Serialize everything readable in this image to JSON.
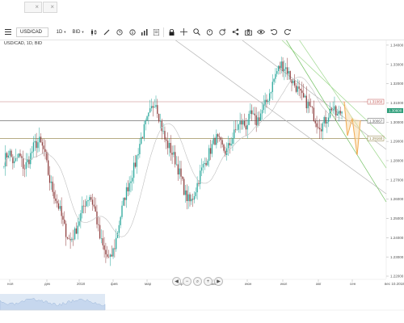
{
  "toolbar": {
    "symbol": "USD/CAD",
    "timeframe": "1D",
    "price_type": "BID",
    "icons": [
      "menu-icon",
      "candles-icon",
      "line-draw-icon",
      "pencil-icon",
      "clock-icon",
      "info-icon",
      "bar-chart-icon",
      "list-icon",
      "lock-icon",
      "crosshair-icon",
      "zoom-icon",
      "alarm-icon",
      "alarm-add-icon",
      "share-icon",
      "camera-icon",
      "eye-icon",
      "undo-icon",
      "redo-icon"
    ]
  },
  "chart": {
    "title": "USD/CAD, 1D, BID",
    "y_ticks": [
      "1.34000",
      "1.33000",
      "1.32000",
      "1.31000",
      "1.30000",
      "1.29000",
      "1.28000",
      "1.27000",
      "1.26000",
      "1.25000",
      "1.24000",
      "1.23000",
      "1.22000"
    ],
    "x_ticks": [
      "ноя",
      "дек",
      "2018",
      "фев",
      "мар",
      "апр",
      "май",
      "июн",
      "июл",
      "авг",
      "сен"
    ],
    "x_corner_label": "вес 10.2018",
    "price_tags": [
      {
        "text": "1.31060",
        "color": "#c0504d"
      },
      {
        "text": "1.30067",
        "color": "#555555"
      },
      {
        "text": "1.29160",
        "color": "#8a7a3a"
      }
    ],
    "last_price": "1.30600",
    "colors": {
      "up": "#26a69a",
      "down": "#8d3b3b",
      "ma": "#bfbfbf",
      "trend": "#8fcf7f",
      "pattern": "#f0a040"
    }
  },
  "chart_data": {
    "type": "candlestick",
    "title": "USD/CAD, 1D, BID",
    "ylim": [
      1.22,
      1.345
    ],
    "yticks": [
      1.34,
      1.33,
      1.32,
      1.31,
      1.3,
      1.29,
      1.28,
      1.27,
      1.26,
      1.25,
      1.24,
      1.23,
      1.22
    ],
    "close_path": [
      1.28,
      1.285,
      1.278,
      1.283,
      1.276,
      1.281,
      1.288,
      1.29,
      1.285,
      1.27,
      1.262,
      1.255,
      1.245,
      1.238,
      1.242,
      1.25,
      1.258,
      1.262,
      1.255,
      1.24,
      1.232,
      1.228,
      1.236,
      1.25,
      1.262,
      1.27,
      1.278,
      1.29,
      1.298,
      1.305,
      1.312,
      1.3,
      1.29,
      1.286,
      1.28,
      1.272,
      1.262,
      1.258,
      1.265,
      1.274,
      1.28,
      1.286,
      1.292,
      1.288,
      1.284,
      1.29,
      1.296,
      1.3,
      1.298,
      1.304,
      1.3,
      1.305,
      1.31,
      1.318,
      1.326,
      1.33,
      1.328,
      1.322,
      1.318,
      1.313,
      1.31,
      1.306,
      1.3,
      1.298,
      1.302,
      1.308,
      1.303,
      1.306
    ],
    "horizontal_levels": [
      1.3106,
      1.30067,
      1.2916
    ]
  },
  "nav": {
    "buttons": [
      "◀",
      "−",
      "⌕",
      "+",
      "▶"
    ]
  }
}
